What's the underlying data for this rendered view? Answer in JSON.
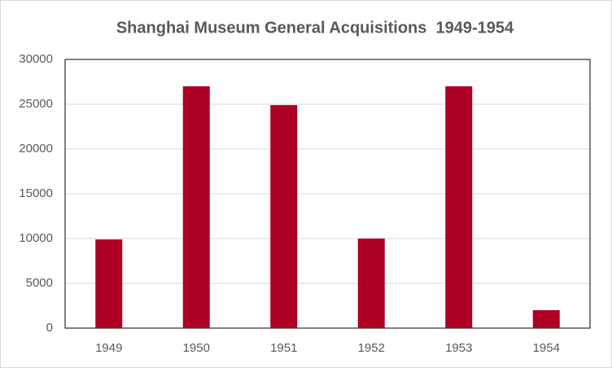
{
  "chart_data": {
    "type": "bar",
    "title": "Shanghai Museum General Acquisitions  1949-1954",
    "categories": [
      "1949",
      "1950",
      "1951",
      "1952",
      "1953",
      "1954"
    ],
    "values": [
      9900,
      27000,
      24900,
      10000,
      27000,
      2000
    ],
    "color": "#ae0025",
    "ylim": [
      0,
      30000
    ],
    "yticks": [
      0,
      5000,
      10000,
      15000,
      20000,
      25000,
      30000
    ],
    "grid": true
  }
}
